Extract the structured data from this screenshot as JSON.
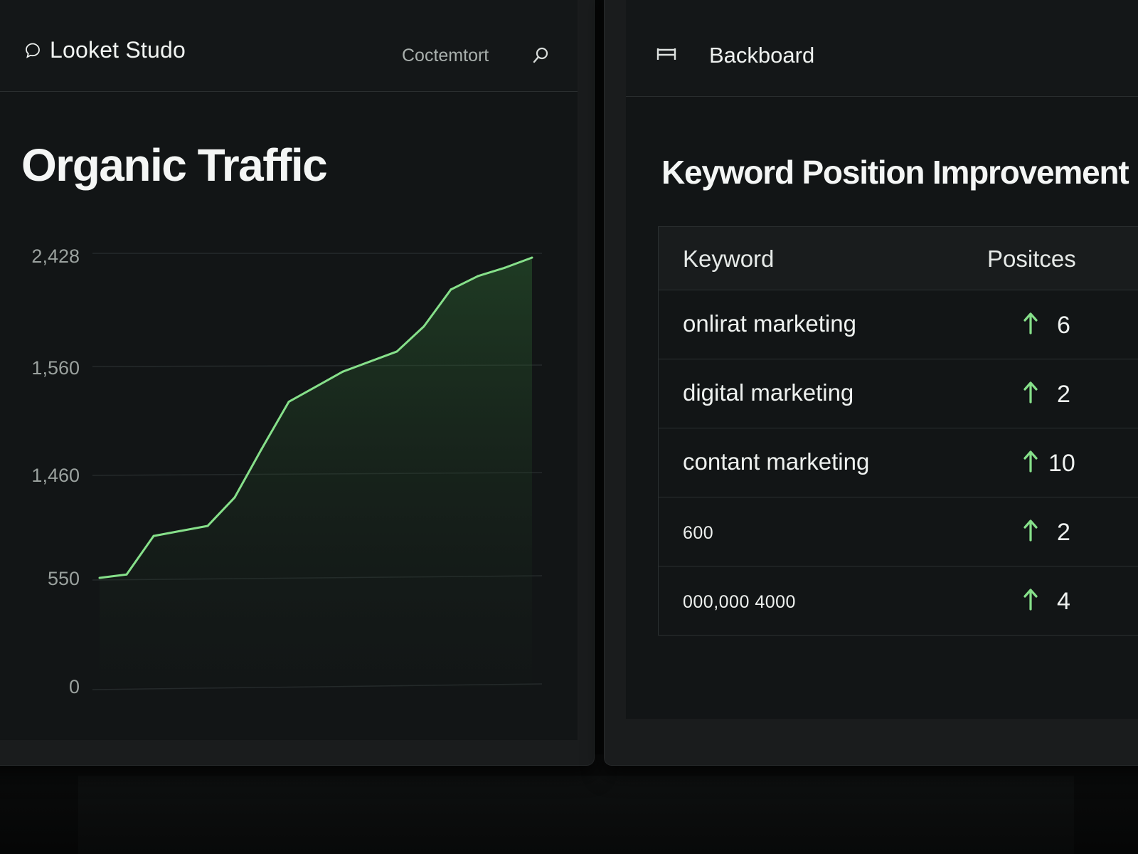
{
  "left_screen": {
    "app_name": "Looket Studo",
    "nav_link": "Coctemtort",
    "page_title": "Organic Traffic",
    "y_ticks": [
      "2,428",
      "1,560",
      "1,460",
      "550",
      "0"
    ]
  },
  "right_screen": {
    "topbar_title": "Backboard",
    "panel_title": "Keyword Position Improvement",
    "table": {
      "headers": {
        "keyword": "Keyword",
        "position": "Positces"
      },
      "rows": [
        {
          "keyword": "onlirat marketing",
          "change": "6"
        },
        {
          "keyword": "digital marketing",
          "change": "2"
        },
        {
          "keyword": "contant marketing",
          "change": "10"
        },
        {
          "keyword": "600",
          "change": "2"
        },
        {
          "keyword": "000,000 4000",
          "change": "4"
        }
      ]
    }
  },
  "colors": {
    "accent_green": "#86e08a",
    "background": "#121516"
  },
  "icons": {
    "brand": "chat-bubble-icon",
    "search": "search-icon",
    "menu": "menu-icon",
    "arrow": "arrow-up-icon"
  },
  "chart_data": {
    "type": "area",
    "title": "Organic Traffic",
    "xlabel": "",
    "ylabel": "",
    "y_tick_labels": [
      "2,428",
      "1,560",
      "1,460",
      "550",
      "0"
    ],
    "ylim": [
      0,
      2428
    ],
    "grid": true,
    "series": [
      {
        "values": [
          550,
          570,
          800,
          830,
          860,
          1030,
          1320,
          1600,
          1690,
          1780,
          1840,
          1900,
          2050,
          2270,
          2350,
          2400,
          2460
        ]
      }
    ]
  }
}
